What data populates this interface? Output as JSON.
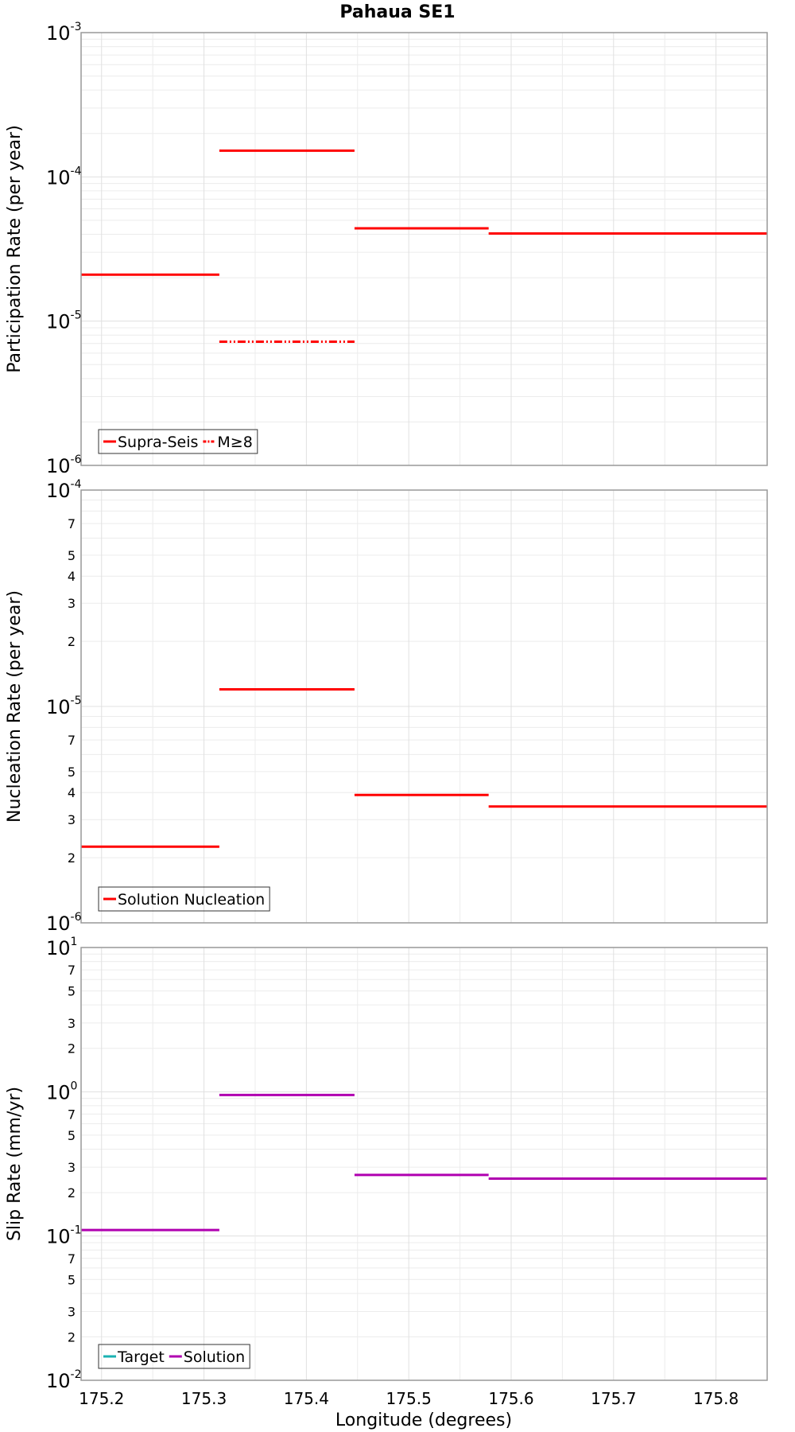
{
  "chart_data": {
    "title": "Pahaua SE1",
    "xlabel": "Longitude (degrees)",
    "xlim": [
      175.18,
      175.85
    ],
    "xticks": [
      {
        "value": 175.2,
        "label": "175.2"
      },
      {
        "value": 175.3,
        "label": "175.3"
      },
      {
        "value": 175.4,
        "label": "175.4"
      },
      {
        "value": 175.5,
        "label": "175.5"
      },
      {
        "value": 175.6,
        "label": "175.6"
      },
      {
        "value": 175.7,
        "label": "175.7"
      },
      {
        "value": 175.8,
        "label": "175.8"
      }
    ],
    "panels": [
      {
        "id": "participation",
        "type": "line",
        "ylabel": "Participation Rate (per year)",
        "yscale": "log",
        "ylim_exp": [
          -6,
          -3
        ],
        "major_ticks": [
          {
            "exp": -6,
            "base": "10",
            "sup": "-6"
          },
          {
            "exp": -5,
            "base": "10",
            "sup": "-5"
          },
          {
            "exp": -4,
            "base": "10",
            "sup": "-4"
          },
          {
            "exp": -3,
            "base": "10",
            "sup": "-3"
          }
        ],
        "minor_labels": [],
        "series": [
          {
            "name": "Supra-Seis",
            "color": "#ff0000",
            "dash": "solid",
            "segments": [
              {
                "x0": 175.18,
                "x1": 175.315,
                "y": 2.1e-05
              },
              {
                "x0": 175.315,
                "x1": 175.447,
                "y": 0.000152
              },
              {
                "x0": 175.447,
                "x1": 175.578,
                "y": 4.4e-05
              },
              {
                "x0": 175.578,
                "x1": 175.85,
                "y": 4.05e-05
              }
            ]
          },
          {
            "name": "M≥8",
            "color": "#ff0000",
            "dash": "dashdot",
            "segments": [
              {
                "x0": 175.315,
                "x1": 175.447,
                "y": 7.2e-06
              }
            ]
          }
        ],
        "legend": [
          "Supra-Seis",
          "M≥8"
        ]
      },
      {
        "id": "nucleation",
        "type": "line",
        "ylabel": "Nucleation Rate (per year)",
        "yscale": "log",
        "ylim_exp": [
          -6,
          -4
        ],
        "major_ticks": [
          {
            "exp": -6,
            "base": "10",
            "sup": "-6"
          },
          {
            "exp": -5,
            "base": "10",
            "sup": "-5"
          },
          {
            "exp": -4,
            "base": "10",
            "sup": "-4"
          }
        ],
        "minor_labels": [
          {
            "mult": 2,
            "decade": -6,
            "label": "2"
          },
          {
            "mult": 3,
            "decade": -6,
            "label": "3"
          },
          {
            "mult": 4,
            "decade": -6,
            "label": "4"
          },
          {
            "mult": 5,
            "decade": -6,
            "label": "5"
          },
          {
            "mult": 7,
            "decade": -6,
            "label": "7"
          },
          {
            "mult": 2,
            "decade": -5,
            "label": "2"
          },
          {
            "mult": 3,
            "decade": -5,
            "label": "3"
          },
          {
            "mult": 4,
            "decade": -5,
            "label": "4"
          },
          {
            "mult": 5,
            "decade": -5,
            "label": "5"
          },
          {
            "mult": 7,
            "decade": -5,
            "label": "7"
          }
        ],
        "series": [
          {
            "name": "Solution Nucleation",
            "color": "#ff0000",
            "dash": "solid",
            "segments": [
              {
                "x0": 175.18,
                "x1": 175.315,
                "y": 2.25e-06
              },
              {
                "x0": 175.315,
                "x1": 175.447,
                "y": 1.2e-05
              },
              {
                "x0": 175.447,
                "x1": 175.578,
                "y": 3.9e-06
              },
              {
                "x0": 175.578,
                "x1": 175.85,
                "y": 3.45e-06
              }
            ]
          }
        ],
        "legend": [
          "Solution Nucleation"
        ]
      },
      {
        "id": "slip",
        "type": "line",
        "ylabel": "Slip Rate (mm/yr)",
        "yscale": "log",
        "ylim_exp": [
          -2,
          1
        ],
        "major_ticks": [
          {
            "exp": -2,
            "base": "10",
            "sup": "-2"
          },
          {
            "exp": -1,
            "base": "10",
            "sup": "-1"
          },
          {
            "exp": 0,
            "base": "10",
            "sup": "0"
          },
          {
            "exp": 1,
            "base": "10",
            "sup": "1"
          }
        ],
        "minor_labels": [
          {
            "mult": 2,
            "decade": -2,
            "label": "2"
          },
          {
            "mult": 3,
            "decade": -2,
            "label": "3"
          },
          {
            "mult": 5,
            "decade": -2,
            "label": "5"
          },
          {
            "mult": 7,
            "decade": -2,
            "label": "7"
          },
          {
            "mult": 2,
            "decade": -1,
            "label": "2"
          },
          {
            "mult": 3,
            "decade": -1,
            "label": "3"
          },
          {
            "mult": 5,
            "decade": -1,
            "label": "5"
          },
          {
            "mult": 7,
            "decade": -1,
            "label": "7"
          },
          {
            "mult": 2,
            "decade": 0,
            "label": "2"
          },
          {
            "mult": 3,
            "decade": 0,
            "label": "3"
          },
          {
            "mult": 5,
            "decade": 0,
            "label": "5"
          },
          {
            "mult": 7,
            "decade": 0,
            "label": "7"
          }
        ],
        "series": [
          {
            "name": "Target",
            "color": "#1ab2b2",
            "dash": "solid",
            "segments": []
          },
          {
            "name": "Solution",
            "color": "#b000b0",
            "dash": "solid",
            "segments": [
              {
                "x0": 175.18,
                "x1": 175.315,
                "y": 0.11
              },
              {
                "x0": 175.315,
                "x1": 175.447,
                "y": 0.95
              },
              {
                "x0": 175.447,
                "x1": 175.578,
                "y": 0.265
              },
              {
                "x0": 175.578,
                "x1": 175.85,
                "y": 0.25
              }
            ]
          }
        ],
        "legend": [
          "Target",
          "Solution"
        ]
      }
    ]
  }
}
